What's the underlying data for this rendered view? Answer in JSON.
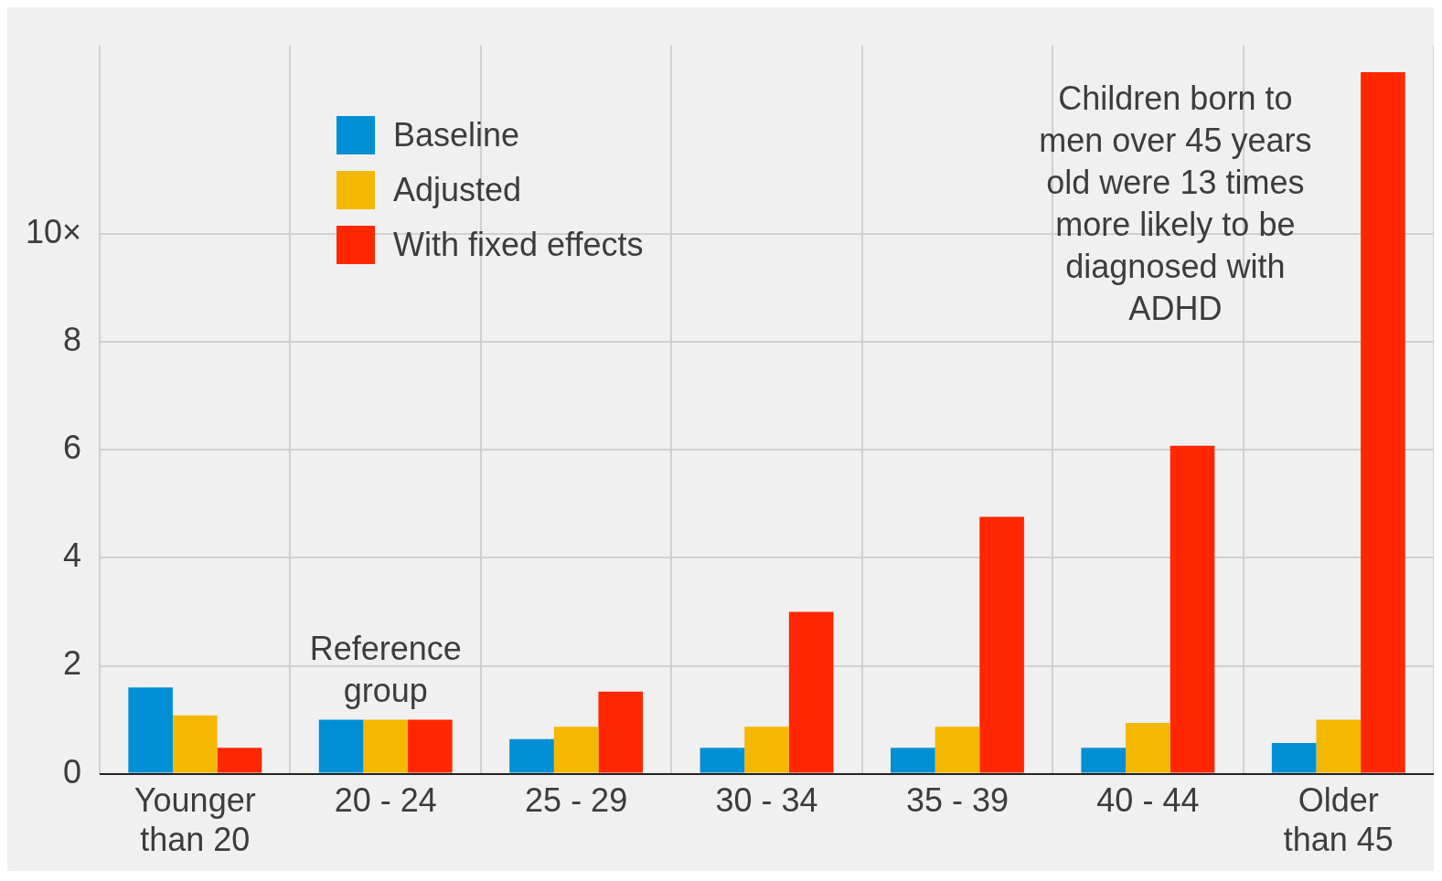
{
  "chart_data": {
    "type": "bar",
    "categories": [
      "Younger than 20",
      "20 - 24",
      "25 - 29",
      "30 - 34",
      "35 - 39",
      "40 - 44",
      "Older than 45"
    ],
    "series": [
      {
        "name": "Baseline",
        "color": "#008fd5",
        "values": [
          1.6,
          1.0,
          0.64,
          0.48,
          0.48,
          0.48,
          0.57
        ]
      },
      {
        "name": "Adjusted",
        "color": "#f5b800",
        "values": [
          1.08,
          1.0,
          0.87,
          0.87,
          0.87,
          0.94,
          1.0
        ]
      },
      {
        "name": "With fixed effects",
        "color": "#ff2700",
        "values": [
          0.48,
          1.0,
          1.52,
          3.0,
          4.76,
          6.08,
          13
        ]
      }
    ],
    "ylim": [
      0,
      13.5
    ],
    "yticks": [
      0,
      2,
      4,
      6,
      8,
      {
        "value": 10,
        "label": "10×"
      }
    ],
    "grid": true,
    "legend": "top left",
    "annotations": [
      {
        "text": "Reference group",
        "x": "20 - 24",
        "y": 1.0
      },
      "Children born to men over 45 years old were 13 times more likely to be diagnosed with ADHD"
    ]
  }
}
